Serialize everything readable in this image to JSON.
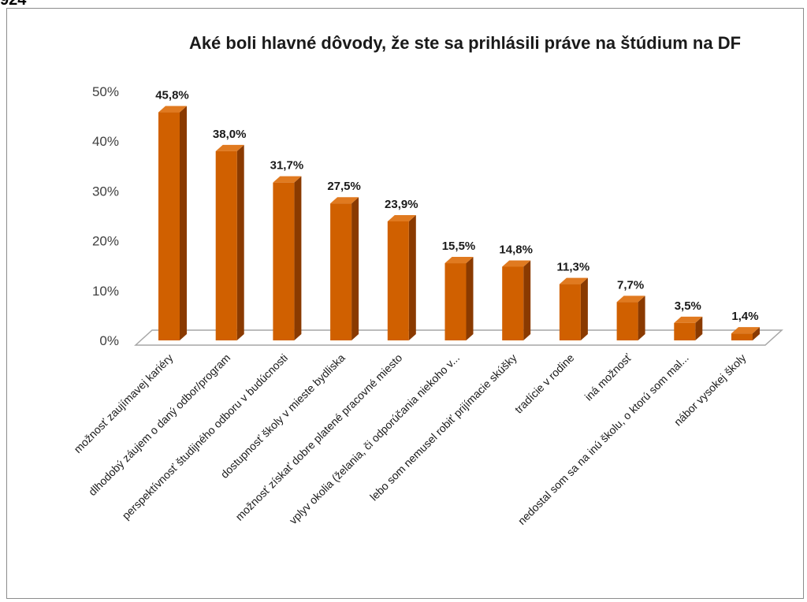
{
  "corner_label": "924",
  "chart_data": {
    "type": "bar",
    "title": "Aké boli hlavné dôvody, že ste sa prihlásili práve na štúdium na DF",
    "xlabel": "",
    "ylabel": "",
    "ylim": [
      0,
      50
    ],
    "yticks": [
      "0%",
      "10%",
      "20%",
      "30%",
      "40%",
      "50%"
    ],
    "grid": false,
    "legend": "none",
    "three_d": true,
    "colors": {
      "bar_front": "#D06000",
      "bar_side": "#8A3A00",
      "bar_top": "#E07A20"
    },
    "categories": [
      "možnosť zaujímavej kariéry",
      "dlhodobý záujem o daný odbor/program",
      "perspektívnosť študijného odboru v budúcnosti",
      "dostupnosť školy v mieste bydliska",
      "možnosť získať dobre platené pracovné miesto",
      "vplyv okolia (želania, či odporúčania niekoho v...",
      "lebo som nemusel robiť prijímacie skúšky",
      "tradície v rodine",
      "iná možnosť",
      "nedostal som sa na inú školu, o ktorú som mal...",
      "nábor vysokej školy"
    ],
    "values": [
      45.8,
      38.0,
      31.7,
      27.5,
      23.9,
      15.5,
      14.8,
      11.3,
      7.7,
      3.5,
      1.4
    ],
    "data_labels": [
      "45,8%",
      "38,0%",
      "31,7%",
      "27,5%",
      "23,9%",
      "15,5%",
      "14,8%",
      "11,3%",
      "7,7%",
      "3,5%",
      "1,4%"
    ]
  }
}
